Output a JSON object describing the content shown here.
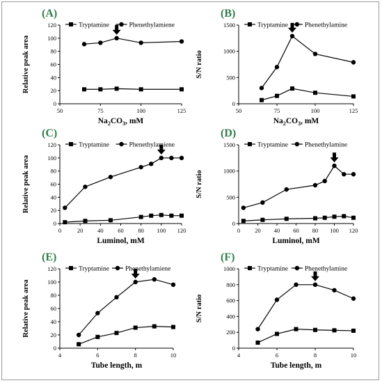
{
  "chart_data": [
    {
      "panel_label": "(A)",
      "type": "line",
      "xlabel": "Na2CO3, mM",
      "xlabel_main": "Na",
      "xlabel_sub1": "2",
      "xlabel_mid": "CO",
      "xlabel_sub2": "3",
      "xlabel_tail": ", mM",
      "ylabel": "Relative peak area",
      "xlim": [
        50,
        125
      ],
      "xticks": [
        50,
        75,
        100,
        125
      ],
      "ylim": [
        0,
        120
      ],
      "yticks": [
        0,
        20,
        40,
        60,
        80,
        100,
        120
      ],
      "series": [
        {
          "name": "Tryptamine",
          "marker": "square",
          "x": [
            65,
            75,
            85,
            100,
            125
          ],
          "values": [
            22,
            22,
            23,
            22,
            22
          ]
        },
        {
          "name": "Phenethylamiene",
          "marker": "circle",
          "x": [
            65,
            75,
            85,
            100,
            125
          ],
          "values": [
            91,
            93,
            100,
            93,
            95
          ]
        }
      ],
      "arrow_at": {
        "x": 85,
        "y": 100
      }
    },
    {
      "panel_label": "(B)",
      "type": "line",
      "xlabel": "Na2CO3, mM",
      "xlabel_main": "Na",
      "xlabel_sub1": "2",
      "xlabel_mid": "CO",
      "xlabel_sub2": "3",
      "xlabel_tail": ", mM",
      "ylabel": "S/N ratio",
      "xlim": [
        50,
        125
      ],
      "xticks": [
        50,
        75,
        100,
        125
      ],
      "ylim": [
        0,
        1500
      ],
      "yticks": [
        0,
        500,
        1000,
        1500
      ],
      "series": [
        {
          "name": "Tryptamine",
          "marker": "square",
          "x": [
            65,
            75,
            85,
            100,
            125
          ],
          "values": [
            70,
            150,
            290,
            210,
            140
          ]
        },
        {
          "name": "Phenethylamine",
          "marker": "circle",
          "x": [
            65,
            75,
            85,
            100,
            125
          ],
          "values": [
            300,
            700,
            1290,
            950,
            790
          ]
        }
      ],
      "arrow_at": {
        "x": 85,
        "y": 1290
      }
    },
    {
      "panel_label": "(C)",
      "type": "line",
      "xlabel": "Luminol, mM",
      "ylabel": "Relative peak area",
      "xlim": [
        0,
        120
      ],
      "xticks": [
        0,
        20,
        40,
        60,
        80,
        100,
        120
      ],
      "ylim": [
        0,
        120
      ],
      "yticks": [
        0,
        20,
        40,
        60,
        80,
        100,
        120
      ],
      "series": [
        {
          "name": "Tryptamine",
          "marker": "square",
          "x": [
            5,
            25,
            50,
            80,
            90,
            100,
            110,
            120
          ],
          "values": [
            2,
            4,
            5,
            10,
            12,
            13,
            12,
            12
          ]
        },
        {
          "name": "Phenethylamiene",
          "marker": "circle",
          "x": [
            5,
            25,
            50,
            80,
            90,
            100,
            110,
            120
          ],
          "values": [
            24,
            56,
            71,
            86,
            91,
            100,
            100,
            100
          ]
        }
      ],
      "arrow_at": {
        "x": 100,
        "y": 100
      }
    },
    {
      "panel_label": "(D)",
      "type": "line",
      "xlabel": "Luminol, mM",
      "ylabel": "S/N ratio",
      "xlim": [
        0,
        120
      ],
      "xticks": [
        0,
        20,
        40,
        60,
        80,
        100,
        120
      ],
      "ylim": [
        0,
        1500
      ],
      "yticks": [
        0,
        500,
        1000,
        1500
      ],
      "series": [
        {
          "name": "Tryptamine",
          "marker": "square",
          "x": [
            5,
            25,
            50,
            80,
            90,
            100,
            110,
            120
          ],
          "values": [
            50,
            70,
            90,
            100,
            110,
            130,
            140,
            110
          ]
        },
        {
          "name": "Phenethylamine",
          "marker": "circle",
          "x": [
            5,
            25,
            50,
            80,
            90,
            100,
            110,
            120
          ],
          "values": [
            300,
            400,
            650,
            730,
            810,
            1100,
            940,
            940
          ]
        }
      ],
      "arrow_at": {
        "x": 100,
        "y": 1100
      }
    },
    {
      "panel_label": "(E)",
      "type": "line",
      "xlabel": "Tube length, m",
      "ylabel": "Relative peak area",
      "xlim": [
        4,
        10
      ],
      "xticks": [
        4,
        6,
        8,
        10
      ],
      "ylim": [
        0,
        120
      ],
      "yticks": [
        0,
        20,
        40,
        60,
        80,
        100,
        120
      ],
      "series": [
        {
          "name": "Tryptamine",
          "marker": "square",
          "x": [
            5,
            6,
            7,
            8,
            9,
            10
          ],
          "values": [
            6,
            17,
            23,
            31,
            33,
            32
          ]
        },
        {
          "name": "Phenethylamiene",
          "marker": "circle",
          "x": [
            5,
            6,
            7,
            8,
            9,
            10
          ],
          "values": [
            20,
            53,
            77,
            100,
            104,
            96
          ]
        }
      ],
      "arrow_at": {
        "x": 8,
        "y": 100
      }
    },
    {
      "panel_label": "(F)",
      "type": "line",
      "xlabel": "Tube length, m",
      "ylabel": "S/N ratio",
      "xlim": [
        4,
        10
      ],
      "xticks": [
        4,
        6,
        8,
        10
      ],
      "ylim": [
        0,
        1000
      ],
      "yticks": [
        0,
        200,
        400,
        600,
        800,
        1000
      ],
      "series": [
        {
          "name": "Tryptamine",
          "marker": "square",
          "x": [
            5,
            6,
            7,
            8,
            9,
            10
          ],
          "values": [
            70,
            180,
            240,
            230,
            225,
            220
          ]
        },
        {
          "name": "Phenethylamine",
          "marker": "circle",
          "x": [
            5,
            6,
            7,
            8,
            9,
            10
          ],
          "values": [
            240,
            610,
            800,
            800,
            730,
            625
          ]
        }
      ],
      "arrow_at": {
        "x": 8,
        "y": 800
      }
    }
  ]
}
